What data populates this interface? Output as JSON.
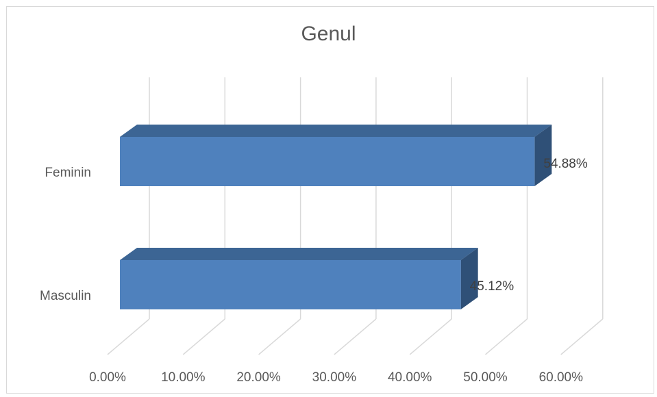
{
  "chart_data": {
    "type": "bar",
    "orientation": "horizontal",
    "style": "3d",
    "title": "Genul",
    "categories": [
      "Feminin",
      "Masculin"
    ],
    "values": [
      54.88,
      45.12
    ],
    "data_labels": [
      "54.88%",
      "45.12%"
    ],
    "xlim": [
      0,
      60
    ],
    "x_ticks": [
      0,
      10,
      20,
      30,
      40,
      50,
      60
    ],
    "x_tick_labels": [
      "0.00%",
      "10.00%",
      "20.00%",
      "30.00%",
      "40.00%",
      "50.00%",
      "60.00%"
    ],
    "grid": true,
    "legend": "none",
    "colors": {
      "bar_front": "#4f81bd",
      "bar_top": "#3c6594",
      "bar_side": "#2f5077",
      "grid": "#d9d9d9",
      "text": "#595959"
    }
  }
}
